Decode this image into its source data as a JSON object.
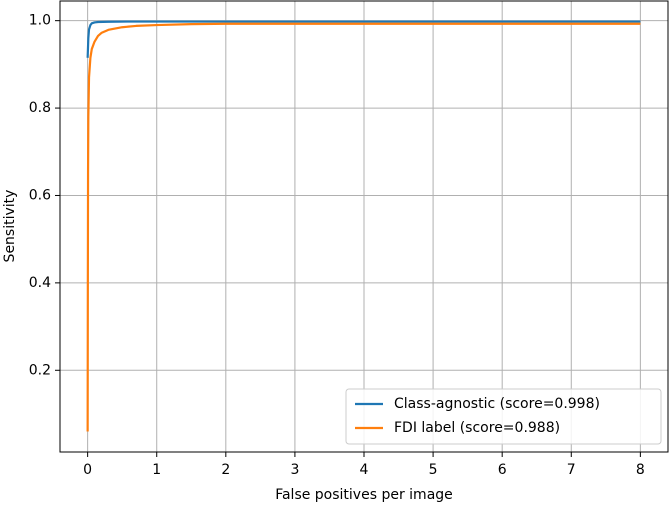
{
  "chart_data": {
    "type": "line",
    "xlabel": "False positives per image",
    "ylabel": "Sensitivity",
    "xlim": [
      -0.4,
      8.4
    ],
    "ylim": [
      0.013,
      1.045
    ],
    "xticks": [
      0,
      1,
      2,
      3,
      4,
      5,
      6,
      7,
      8
    ],
    "yticks": [
      0.2,
      0.4,
      0.6,
      0.8,
      {
        "value": 1,
        "label": "1.0"
      }
    ],
    "grid": true,
    "legend": "lower right",
    "series": [
      {
        "name": "Class-agnostic (score=0.998)",
        "color": "#1f77b4",
        "x": [
          0,
          0.01,
          0.02,
          0.04,
          0.06,
          0.1,
          0.15,
          0.3,
          0.6,
          1,
          2,
          4,
          8
        ],
        "values": [
          0.915,
          0.96,
          0.98,
          0.99,
          0.994,
          0.996,
          0.997,
          0.9975,
          0.998,
          0.998,
          0.998,
          0.998,
          0.998
        ]
      },
      {
        "name": "FDI label (score=0.988)",
        "color": "#ff7f0e",
        "x": [
          0,
          0.003,
          0.006,
          0.01,
          0.02,
          0.04,
          0.06,
          0.1,
          0.15,
          0.2,
          0.3,
          0.5,
          0.7,
          1,
          1.5,
          2,
          4,
          8
        ],
        "values": [
          0.06,
          0.4,
          0.65,
          0.78,
          0.87,
          0.915,
          0.935,
          0.952,
          0.965,
          0.972,
          0.979,
          0.985,
          0.988,
          0.99,
          0.992,
          0.993,
          0.993,
          0.993
        ]
      }
    ]
  }
}
